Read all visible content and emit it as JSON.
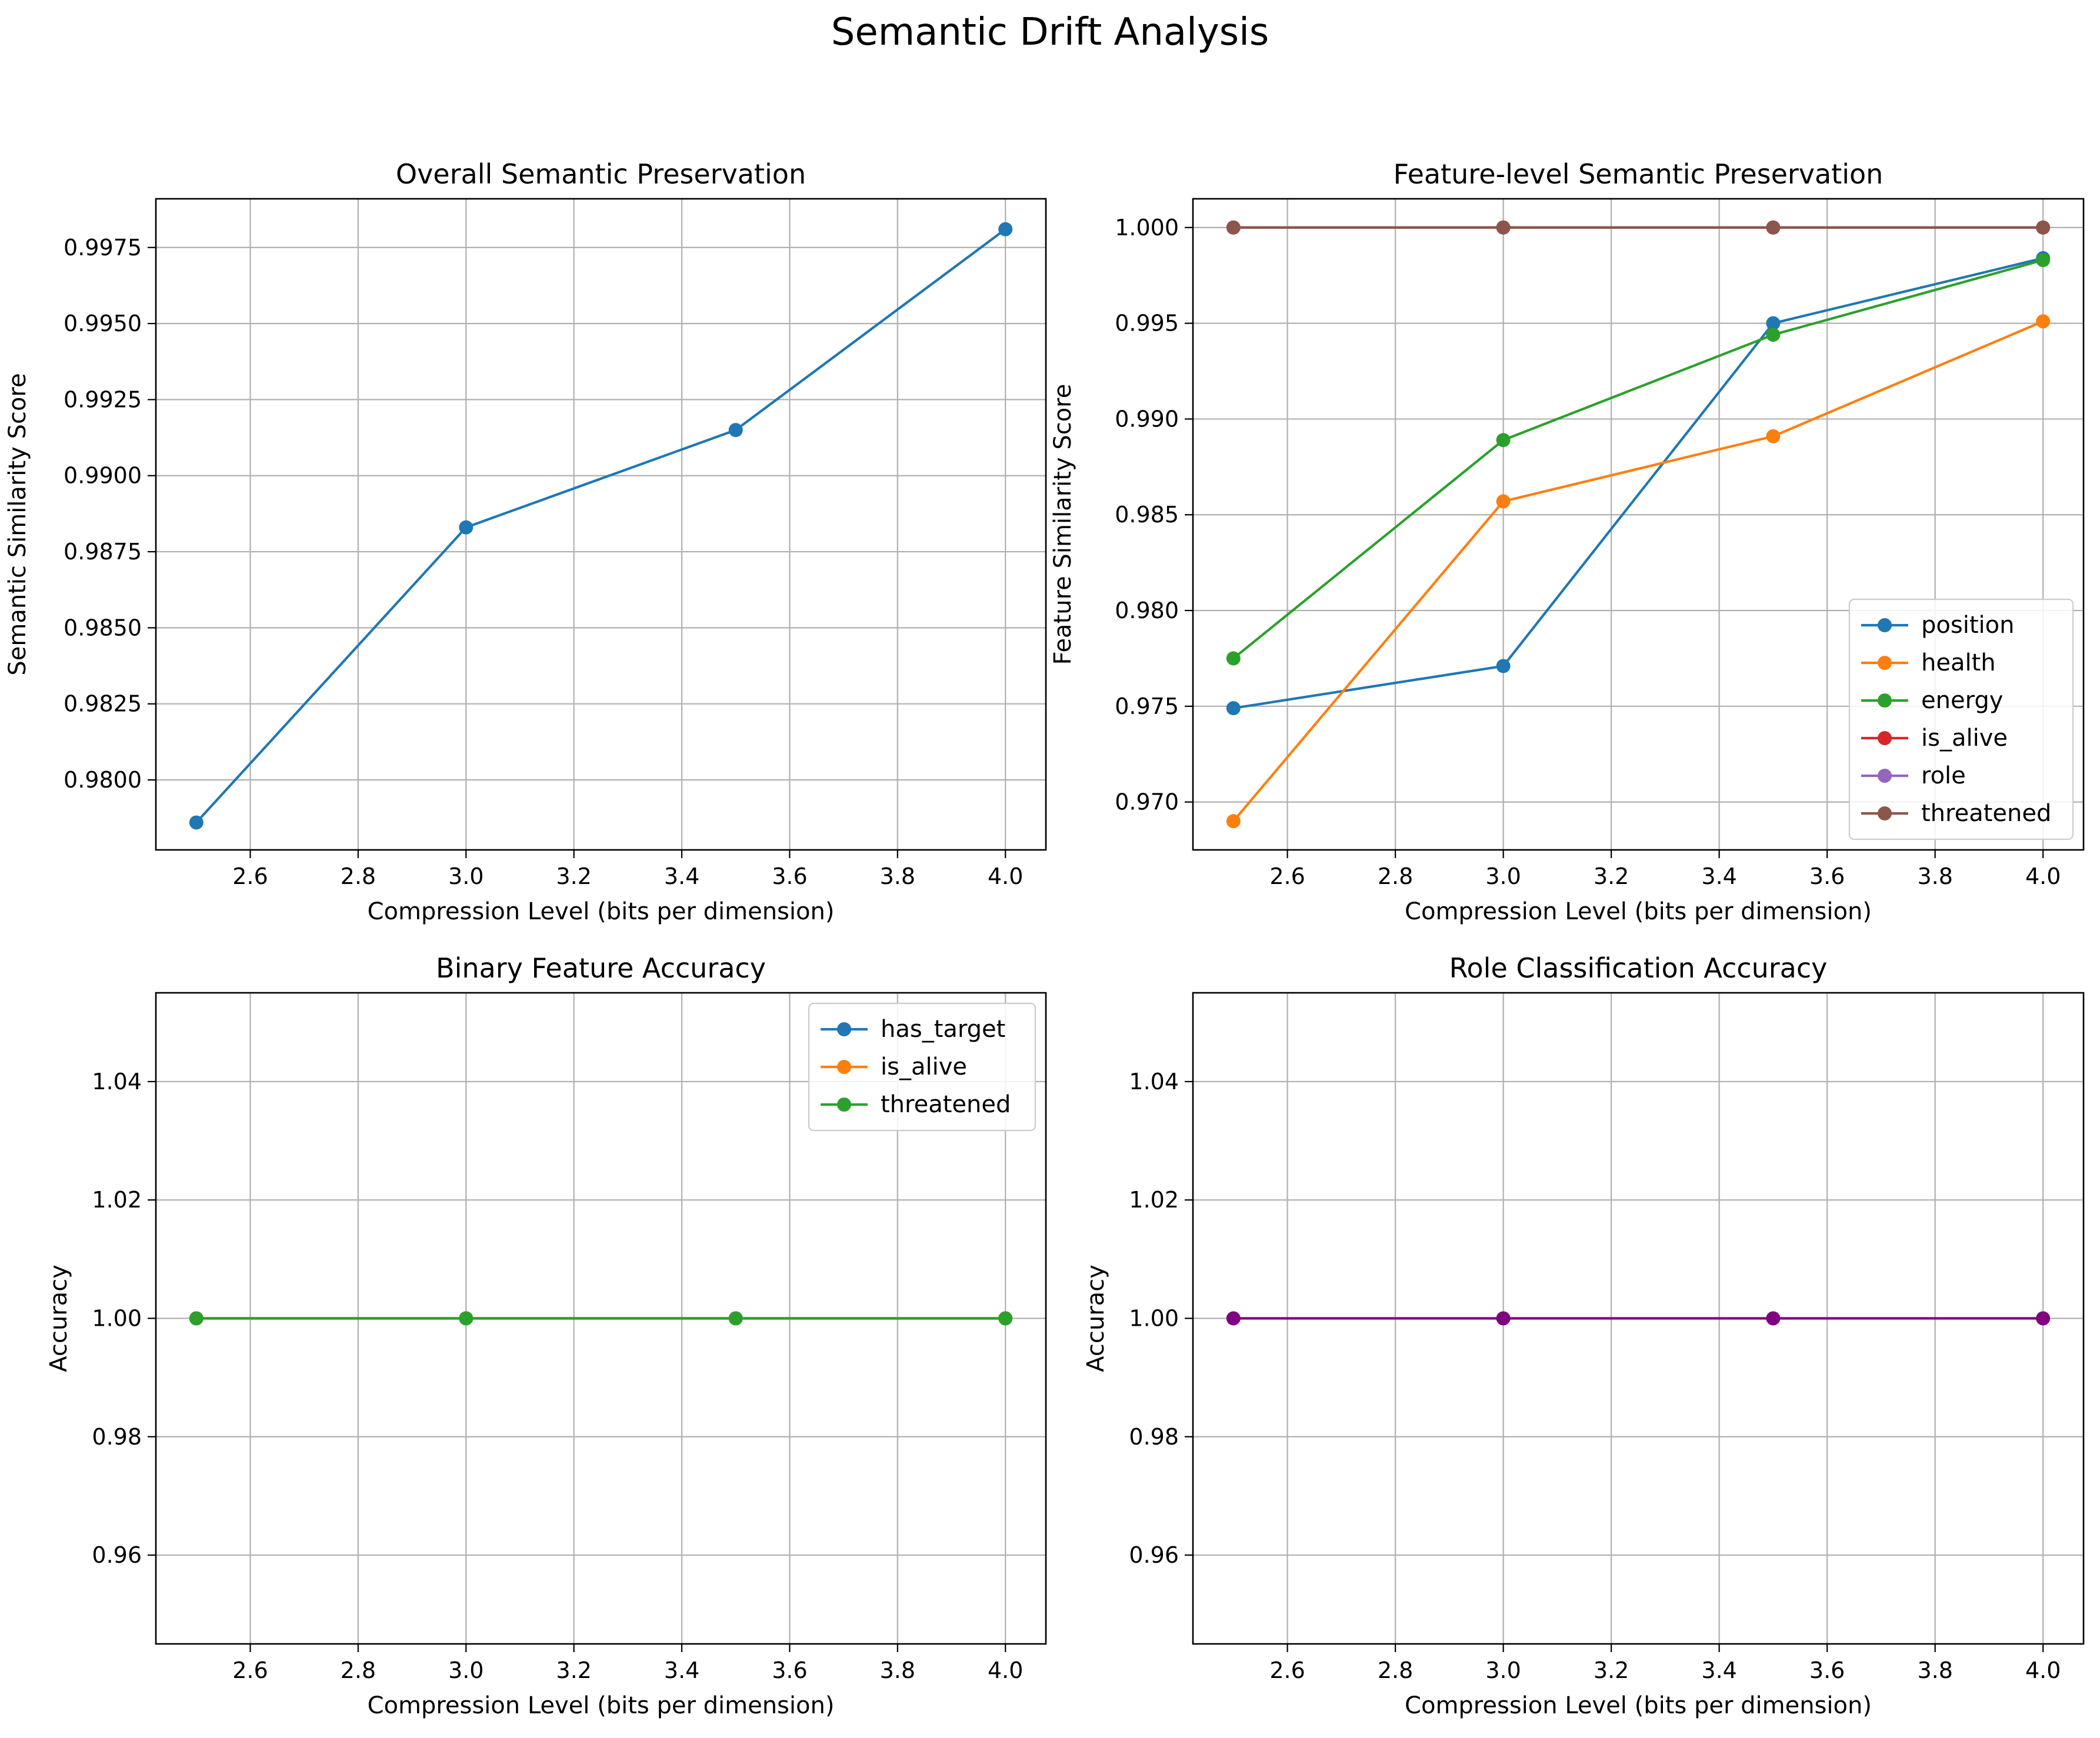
{
  "figure_title": "Semantic Drift Analysis",
  "chart_data": [
    {
      "type": "line",
      "title": "Overall Semantic Preservation",
      "xlabel": "Compression Level (bits per dimension)",
      "ylabel": "Semantic Similarity Score",
      "x": [
        2.5,
        3.0,
        3.5,
        4.0
      ],
      "xticks": [
        2.6,
        2.8,
        3.0,
        3.2,
        3.4,
        3.6,
        3.8,
        4.0
      ],
      "xtick_labels": [
        "2.6",
        "2.8",
        "3.0",
        "3.2",
        "3.4",
        "3.6",
        "3.8",
        "4.0"
      ],
      "xlim": [
        2.425,
        4.075
      ],
      "yticks": [
        0.98,
        0.9825,
        0.985,
        0.9875,
        0.99,
        0.9925,
        0.995,
        0.9975
      ],
      "ytick_labels": [
        "0.9800",
        "0.9825",
        "0.9850",
        "0.9875",
        "0.9900",
        "0.9925",
        "0.9950",
        "0.9975"
      ],
      "ylim": [
        0.9777,
        0.9991
      ],
      "grid": true,
      "legend": null,
      "series": [
        {
          "color": "#1f77b4",
          "values": [
            0.9786,
            0.9883,
            0.9915,
            0.9981
          ]
        }
      ]
    },
    {
      "type": "line",
      "title": "Feature-level Semantic Preservation",
      "xlabel": "Compression Level (bits per dimension)",
      "ylabel": "Feature Similarity Score",
      "x": [
        2.5,
        3.0,
        3.5,
        4.0
      ],
      "xticks": [
        2.6,
        2.8,
        3.0,
        3.2,
        3.4,
        3.6,
        3.8,
        4.0
      ],
      "xtick_labels": [
        "2.6",
        "2.8",
        "3.0",
        "3.2",
        "3.4",
        "3.6",
        "3.8",
        "4.0"
      ],
      "xlim": [
        2.425,
        4.075
      ],
      "yticks": [
        0.97,
        0.975,
        0.98,
        0.985,
        0.99,
        0.995,
        1.0
      ],
      "ytick_labels": [
        "0.970",
        "0.975",
        "0.980",
        "0.985",
        "0.990",
        "0.995",
        "1.000"
      ],
      "ylim": [
        0.9675,
        1.0015
      ],
      "grid": true,
      "legend": "lower right",
      "series": [
        {
          "name": "position",
          "color": "#1f77b4",
          "values": [
            0.9749,
            0.9771,
            0.995,
            0.9984
          ]
        },
        {
          "name": "health",
          "color": "#ff7f0e",
          "values": [
            0.969,
            0.9857,
            0.9891,
            0.9951
          ]
        },
        {
          "name": "energy",
          "color": "#2ca02c",
          "values": [
            0.9775,
            0.9889,
            0.9944,
            0.9983
          ]
        },
        {
          "name": "is_alive",
          "color": "#d62728",
          "values": [
            1.0,
            1.0,
            1.0,
            1.0
          ]
        },
        {
          "name": "role",
          "color": "#9467bd",
          "values": [
            1.0,
            1.0,
            1.0,
            1.0
          ]
        },
        {
          "name": "threatened",
          "color": "#8c564b",
          "values": [
            1.0,
            1.0,
            1.0,
            1.0
          ]
        }
      ]
    },
    {
      "type": "line",
      "title": "Binary Feature Accuracy",
      "xlabel": "Compression Level (bits per dimension)",
      "ylabel": "Accuracy",
      "x": [
        2.5,
        3.0,
        3.5,
        4.0
      ],
      "xticks": [
        2.6,
        2.8,
        3.0,
        3.2,
        3.4,
        3.6,
        3.8,
        4.0
      ],
      "xtick_labels": [
        "2.6",
        "2.8",
        "3.0",
        "3.2",
        "3.4",
        "3.6",
        "3.8",
        "4.0"
      ],
      "xlim": [
        2.425,
        4.075
      ],
      "yticks": [
        0.96,
        0.98,
        1.0,
        1.02,
        1.04
      ],
      "ytick_labels": [
        "0.96",
        "0.98",
        "1.00",
        "1.02",
        "1.04"
      ],
      "ylim": [
        0.945,
        1.055
      ],
      "grid": true,
      "legend": "upper right",
      "series": [
        {
          "name": "has_target",
          "color": "#1f77b4",
          "values": [
            1.0,
            1.0,
            1.0,
            1.0
          ]
        },
        {
          "name": "is_alive",
          "color": "#ff7f0e",
          "values": [
            1.0,
            1.0,
            1.0,
            1.0
          ]
        },
        {
          "name": "threatened",
          "color": "#2ca02c",
          "values": [
            1.0,
            1.0,
            1.0,
            1.0
          ]
        }
      ]
    },
    {
      "type": "line",
      "title": "Role Classification Accuracy",
      "xlabel": "Compression Level (bits per dimension)",
      "ylabel": "Accuracy",
      "x": [
        2.5,
        3.0,
        3.5,
        4.0
      ],
      "xticks": [
        2.6,
        2.8,
        3.0,
        3.2,
        3.4,
        3.6,
        3.8,
        4.0
      ],
      "xtick_labels": [
        "2.6",
        "2.8",
        "3.0",
        "3.2",
        "3.4",
        "3.6",
        "3.8",
        "4.0"
      ],
      "xlim": [
        2.425,
        4.075
      ],
      "yticks": [
        0.96,
        0.98,
        1.0,
        1.02,
        1.04
      ],
      "ytick_labels": [
        "0.96",
        "0.98",
        "1.00",
        "1.02",
        "1.04"
      ],
      "ylim": [
        0.945,
        1.055
      ],
      "grid": true,
      "legend": null,
      "series": [
        {
          "color": "#800080",
          "values": [
            1.0,
            1.0,
            1.0,
            1.0
          ]
        }
      ]
    }
  ]
}
